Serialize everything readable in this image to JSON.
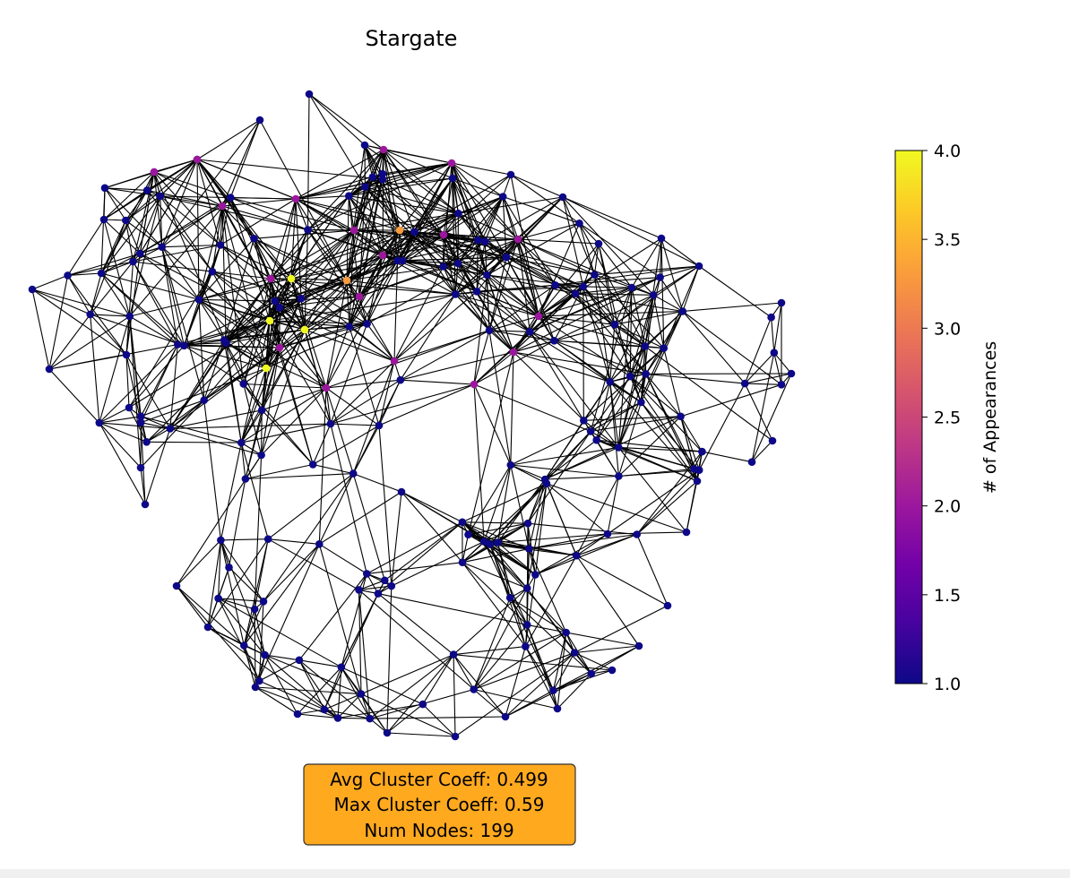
{
  "title": "Stargate",
  "colorbar": {
    "label": "# of Appearances",
    "min": 1.0,
    "max": 4.0,
    "ticks": [
      "1.0",
      "1.5",
      "2.0",
      "2.5",
      "3.0",
      "3.5",
      "4.0"
    ],
    "colormap": "plasma",
    "stops": [
      "#0d0887",
      "#46039f",
      "#7201a8",
      "#9c179e",
      "#bd3786",
      "#d8576b",
      "#ed7953",
      "#fb9f3a",
      "#fdca26",
      "#f0f921"
    ]
  },
  "stats": {
    "line1": "Avg Cluster Coeff: 0.499",
    "line2": "Max Cluster Coeff: 0.59",
    "line3": "Num Nodes: 199",
    "box_color": "#ffa91f"
  },
  "graph": {
    "num_nodes": 199,
    "edge_color": "#000000"
  }
}
